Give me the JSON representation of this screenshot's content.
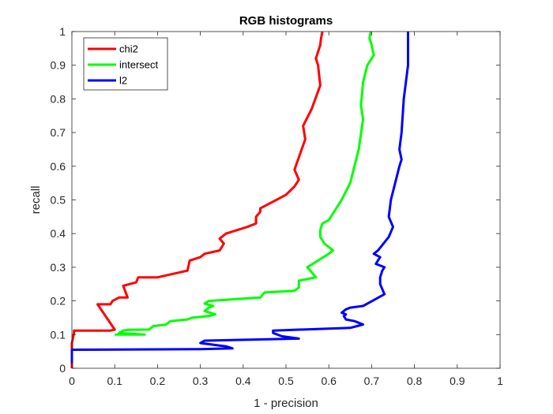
{
  "chart_data": {
    "type": "line",
    "title": "RGB histograms",
    "xlabel": "1 - precision",
    "ylabel": "recall",
    "xlim": [
      0,
      1
    ],
    "ylim": [
      0,
      1
    ],
    "xticks": [
      "0",
      "0.1",
      "0.2",
      "0.3",
      "0.4",
      "0.5",
      "0.6",
      "0.7",
      "0.8",
      "0.9",
      "1"
    ],
    "yticks": [
      "0",
      "0.1",
      "0.2",
      "0.3",
      "0.4",
      "0.5",
      "0.6",
      "0.7",
      "0.8",
      "0.9",
      "1"
    ],
    "grid": false,
    "legend_position": "top-left",
    "series": [
      {
        "name": "chi2",
        "color": "#ff0000",
        "points": [
          [
            0,
            0
          ],
          [
            0,
            0.06
          ],
          [
            0,
            0.075
          ],
          [
            0.005,
            0.105
          ],
          [
            0.005,
            0.112
          ],
          [
            0.09,
            0.112
          ],
          [
            0.1,
            0.115
          ],
          [
            0.06,
            0.19
          ],
          [
            0.09,
            0.19
          ],
          [
            0.095,
            0.2
          ],
          [
            0.11,
            0.21
          ],
          [
            0.13,
            0.21
          ],
          [
            0.12,
            0.245
          ],
          [
            0.15,
            0.255
          ],
          [
            0.155,
            0.27
          ],
          [
            0.2,
            0.27
          ],
          [
            0.27,
            0.29
          ],
          [
            0.275,
            0.32
          ],
          [
            0.3,
            0.33
          ],
          [
            0.31,
            0.34
          ],
          [
            0.345,
            0.35
          ],
          [
            0.355,
            0.37
          ],
          [
            0.345,
            0.385
          ],
          [
            0.36,
            0.4
          ],
          [
            0.41,
            0.42
          ],
          [
            0.43,
            0.43
          ],
          [
            0.43,
            0.45
          ],
          [
            0.44,
            0.465
          ],
          [
            0.44,
            0.475
          ],
          [
            0.5,
            0.515
          ],
          [
            0.52,
            0.54
          ],
          [
            0.53,
            0.56
          ],
          [
            0.52,
            0.59
          ],
          [
            0.545,
            0.68
          ],
          [
            0.54,
            0.72
          ],
          [
            0.56,
            0.77
          ],
          [
            0.58,
            0.84
          ],
          [
            0.575,
            0.9
          ],
          [
            0.57,
            0.92
          ],
          [
            0.575,
            0.94
          ],
          [
            0.58,
            0.96
          ],
          [
            0.582,
            0.98
          ],
          [
            0.585,
            1.0
          ]
        ]
      },
      {
        "name": "intersect",
        "color": "#00ff00",
        "points": [
          [
            0.1,
            0.1
          ],
          [
            0.14,
            0.1
          ],
          [
            0.17,
            0.1
          ],
          [
            0.11,
            0.105
          ],
          [
            0.12,
            0.112
          ],
          [
            0.13,
            0.114
          ],
          [
            0.18,
            0.115
          ],
          [
            0.19,
            0.125
          ],
          [
            0.22,
            0.13
          ],
          [
            0.23,
            0.14
          ],
          [
            0.27,
            0.145
          ],
          [
            0.28,
            0.15
          ],
          [
            0.32,
            0.155
          ],
          [
            0.335,
            0.16
          ],
          [
            0.31,
            0.17
          ],
          [
            0.32,
            0.18
          ],
          [
            0.33,
            0.185
          ],
          [
            0.31,
            0.192
          ],
          [
            0.32,
            0.2
          ],
          [
            0.44,
            0.21
          ],
          [
            0.45,
            0.225
          ],
          [
            0.52,
            0.23
          ],
          [
            0.53,
            0.24
          ],
          [
            0.53,
            0.26
          ],
          [
            0.57,
            0.27
          ],
          [
            0.55,
            0.3
          ],
          [
            0.6,
            0.34
          ],
          [
            0.61,
            0.35
          ],
          [
            0.59,
            0.37
          ],
          [
            0.58,
            0.39
          ],
          [
            0.58,
            0.41
          ],
          [
            0.585,
            0.43
          ],
          [
            0.6,
            0.44
          ],
          [
            0.63,
            0.5
          ],
          [
            0.65,
            0.55
          ],
          [
            0.67,
            0.65
          ],
          [
            0.68,
            0.74
          ],
          [
            0.675,
            0.78
          ],
          [
            0.68,
            0.85
          ],
          [
            0.69,
            0.9
          ],
          [
            0.705,
            0.93
          ],
          [
            0.7,
            0.96
          ],
          [
            0.695,
            0.98
          ],
          [
            0.698,
            1.0
          ]
        ]
      },
      {
        "name": "l2",
        "color": "#0000ff",
        "points": [
          [
            0,
            0.015
          ],
          [
            0,
            0.055
          ],
          [
            0.3,
            0.057
          ],
          [
            0.375,
            0.059
          ],
          [
            0.36,
            0.065
          ],
          [
            0.3,
            0.075
          ],
          [
            0.31,
            0.082
          ],
          [
            0.53,
            0.088
          ],
          [
            0.49,
            0.095
          ],
          [
            0.47,
            0.105
          ],
          [
            0.47,
            0.112
          ],
          [
            0.65,
            0.12
          ],
          [
            0.68,
            0.13
          ],
          [
            0.66,
            0.14
          ],
          [
            0.64,
            0.145
          ],
          [
            0.635,
            0.155
          ],
          [
            0.64,
            0.16
          ],
          [
            0.63,
            0.165
          ],
          [
            0.64,
            0.175
          ],
          [
            0.65,
            0.18
          ],
          [
            0.68,
            0.185
          ],
          [
            0.73,
            0.22
          ],
          [
            0.725,
            0.235
          ],
          [
            0.72,
            0.25
          ],
          [
            0.72,
            0.27
          ],
          [
            0.725,
            0.29
          ],
          [
            0.73,
            0.3
          ],
          [
            0.71,
            0.31
          ],
          [
            0.72,
            0.33
          ],
          [
            0.705,
            0.34
          ],
          [
            0.715,
            0.35
          ],
          [
            0.74,
            0.39
          ],
          [
            0.75,
            0.42
          ],
          [
            0.74,
            0.45
          ],
          [
            0.745,
            0.5
          ],
          [
            0.755,
            0.55
          ],
          [
            0.765,
            0.6
          ],
          [
            0.77,
            0.62
          ],
          [
            0.765,
            0.65
          ],
          [
            0.77,
            0.7
          ],
          [
            0.775,
            0.8
          ],
          [
            0.78,
            0.85
          ],
          [
            0.785,
            0.9
          ],
          [
            0.785,
            1.0
          ]
        ]
      }
    ]
  }
}
